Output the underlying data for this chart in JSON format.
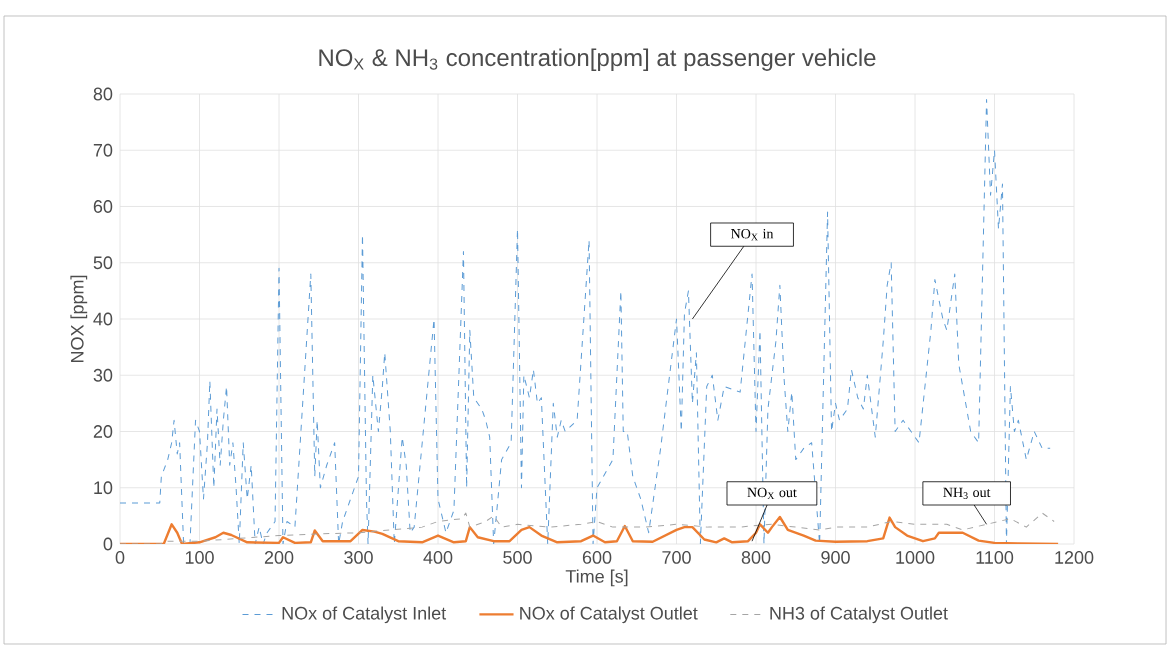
{
  "chart_data": {
    "type": "line",
    "title": "NO$_{X}$ & NH$_{3}$ concentration[ppm]  at passenger  vehicle",
    "xlabel": "Time [s]",
    "ylabel": "NOX [ppm]",
    "xlim": [
      0,
      1200
    ],
    "xticks": [
      0,
      100,
      200,
      300,
      400,
      500,
      600,
      700,
      800,
      900,
      1000,
      1100,
      1200
    ],
    "ylim": [
      0,
      80
    ],
    "yticks": [
      0,
      10,
      20,
      30,
      40,
      50,
      60,
      70,
      80
    ],
    "grid": true,
    "legend": "bottom",
    "marker": "none",
    "annotations": [
      {
        "text": "NO$_{X}$  in",
        "x": 720,
        "y": 40
      },
      {
        "text": "NO$_{X}$  out",
        "x": 795,
        "y": 0.5
      },
      {
        "text": "NH$_{3}$  out",
        "x": 1090,
        "y": 3.5
      }
    ],
    "series": [
      {
        "name": "NOx of Catalyst Inlet",
        "color": "#5b9bd5",
        "line_style": "dashed",
        "x": [
          0,
          50,
          52,
          60,
          65,
          68,
          72,
          75,
          80,
          88,
          95,
          100,
          105,
          110,
          113,
          118,
          122,
          126,
          130,
          134,
          138,
          142,
          146,
          150,
          155,
          160,
          165,
          170,
          175,
          180,
          185,
          195,
          200,
          205,
          210,
          220,
          240,
          245,
          248,
          252,
          260,
          270,
          275,
          280,
          300,
          305,
          310,
          312,
          318,
          325,
          330,
          333,
          340,
          345,
          355,
          360,
          365,
          370,
          395,
          400,
          405,
          410,
          420,
          432,
          436,
          440,
          445,
          455,
          460,
          465,
          470,
          480,
          492,
          500,
          505,
          508,
          515,
          520,
          525,
          530,
          538,
          545,
          550,
          555,
          560,
          575,
          590,
          595,
          600,
          620,
          630,
          633,
          638,
          645,
          655,
          660,
          665,
          680,
          700,
          706,
          710,
          715,
          720,
          725,
          730,
          738,
          745,
          752,
          760,
          780,
          795,
          800,
          805,
          810,
          815,
          825,
          830,
          835,
          840,
          845,
          850,
          860,
          870,
          880,
          890,
          895,
          900,
          905,
          915,
          920,
          928,
          935,
          940,
          950,
          960,
          965,
          970,
          975,
          985,
          995,
          1005,
          1020,
          1025,
          1035,
          1040,
          1050,
          1055,
          1060,
          1070,
          1080,
          1090,
          1095,
          1100,
          1105,
          1110,
          1115,
          1120,
          1125,
          1130,
          1140,
          1150,
          1160,
          1170
        ],
        "values": [
          7.3,
          7.3,
          12,
          15,
          18,
          22,
          16,
          18,
          0,
          0,
          22,
          20,
          8,
          18,
          29,
          10,
          24,
          14,
          22,
          28,
          14,
          18,
          10,
          0,
          18,
          8,
          14,
          0,
          3,
          0,
          2,
          4,
          49,
          0,
          4,
          3,
          48,
          12,
          22,
          10,
          14,
          18,
          0,
          4,
          12,
          55,
          8,
          0,
          30,
          20,
          28,
          34,
          20,
          0,
          19,
          14,
          2,
          3,
          40,
          8,
          5,
          2,
          6,
          52,
          10,
          38,
          26,
          24,
          22,
          19,
          0,
          15,
          18,
          56,
          10,
          30,
          26,
          31,
          25,
          26,
          0,
          25,
          19,
          22,
          20,
          22,
          54,
          0,
          10,
          15,
          45,
          20,
          20,
          12,
          8,
          5,
          2,
          17,
          40,
          20,
          41,
          45,
          25,
          34,
          0,
          28,
          30,
          22,
          28,
          27,
          48,
          20,
          38,
          0,
          24,
          36,
          46,
          30,
          20,
          27,
          15,
          17,
          18,
          0,
          59,
          20,
          25,
          22,
          24,
          31,
          26,
          24,
          30,
          19,
          36,
          46,
          50,
          20,
          22,
          20,
          18,
          38,
          47,
          40,
          38,
          48,
          32,
          28,
          20,
          18,
          79,
          62,
          70,
          56,
          64,
          0,
          28,
          20,
          22,
          15,
          20,
          17,
          17
        ]
      },
      {
        "name": "NOx of Catalyst Outlet",
        "color": "#ed7d31",
        "line_style": "solid",
        "x": [
          0,
          55,
          65,
          72,
          78,
          100,
          120,
          130,
          140,
          160,
          200,
          205,
          220,
          240,
          245,
          255,
          290,
          305,
          320,
          330,
          350,
          380,
          400,
          420,
          435,
          440,
          450,
          470,
          490,
          505,
          515,
          530,
          550,
          580,
          595,
          610,
          625,
          635,
          645,
          670,
          700,
          710,
          720,
          735,
          750,
          760,
          770,
          790,
          800,
          805,
          815,
          820,
          830,
          840,
          860,
          875,
          900,
          940,
          960,
          968,
          975,
          990,
          1010,
          1025,
          1030,
          1060,
          1080,
          1100,
          1130,
          1180
        ],
        "values": [
          0,
          0,
          3.5,
          2,
          0,
          0.3,
          1.2,
          2,
          1.6,
          0.3,
          0.2,
          1.2,
          0.2,
          0.3,
          2.4,
          0.5,
          0.5,
          2.5,
          2.2,
          1.8,
          0.5,
          0.3,
          1.5,
          0.3,
          0.5,
          3,
          1.2,
          0.5,
          0.5,
          2.5,
          3,
          1.5,
          0.3,
          0.5,
          1.5,
          0.3,
          0.5,
          3.2,
          0.5,
          0.4,
          2.5,
          3,
          3,
          0.8,
          0.3,
          1,
          0.3,
          0.5,
          2,
          3.5,
          2,
          3,
          4.8,
          2.5,
          1.5,
          0.6,
          0.4,
          0.5,
          1,
          4.7,
          3,
          1.5,
          0.5,
          1,
          2,
          2,
          0.6,
          0.2,
          0.1,
          0
        ]
      },
      {
        "name": "NH3 of Catalyst Outlet",
        "color": "#a5a5a5",
        "line_style": "dashed",
        "x": [
          0,
          50,
          60,
          100,
          150,
          200,
          250,
          300,
          340,
          380,
          400,
          430,
          435,
          440,
          460,
          470,
          480,
          500,
          540,
          580,
          600,
          620,
          660,
          700,
          740,
          780,
          800,
          820,
          850,
          880,
          900,
          940,
          970,
          1000,
          1040,
          1060,
          1090,
          1120,
          1140,
          1160,
          1175
        ],
        "values": [
          0,
          0,
          0.5,
          0.5,
          1,
          1.5,
          1.8,
          2,
          2.5,
          3,
          4,
          4.5,
          5.5,
          3,
          4,
          5,
          3,
          3.5,
          3,
          3.5,
          4,
          3,
          3,
          3.5,
          3,
          3,
          3.3,
          3.5,
          3,
          2.5,
          3,
          3,
          4,
          3.5,
          3.5,
          2.5,
          3.5,
          4.5,
          3,
          5.5,
          4
        ]
      }
    ]
  }
}
